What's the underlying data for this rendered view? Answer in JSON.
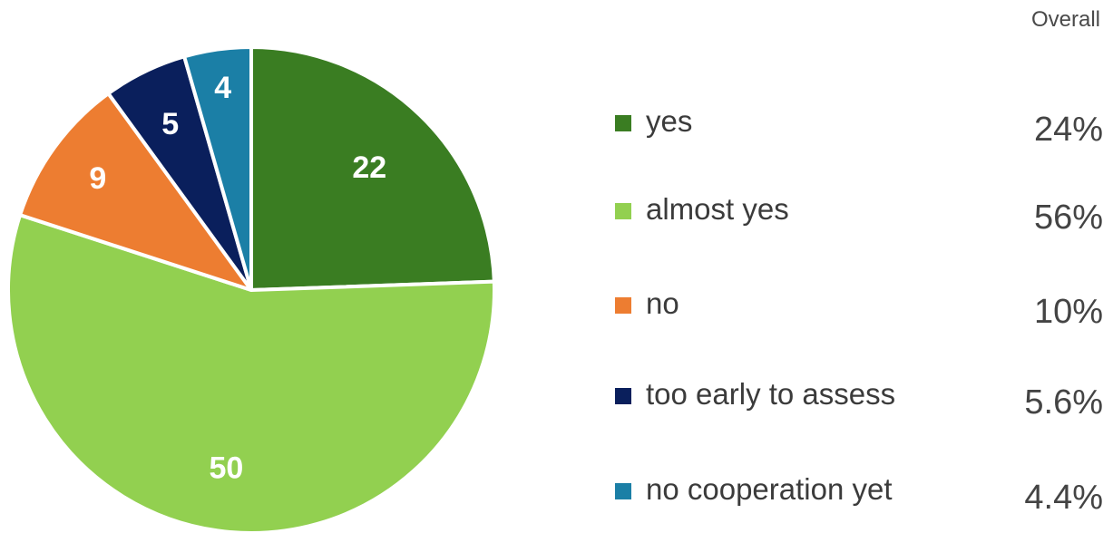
{
  "header": {
    "column_title": "Overall"
  },
  "chart_data": {
    "type": "pie",
    "categories": [
      "yes",
      "almost yes",
      "no",
      "too early to assess",
      "no cooperation yet"
    ],
    "values": [
      22,
      50,
      9,
      5,
      4
    ],
    "percent_labels": [
      "24%",
      "56%",
      "10%",
      "5.6%",
      "4.4%"
    ],
    "colors": [
      "#3a7d22",
      "#92d050",
      "#ed7d31",
      "#0a1f5c",
      "#1b7fa6"
    ],
    "legend_position": "right",
    "start_angle_deg": 0,
    "direction": "clockwise"
  }
}
